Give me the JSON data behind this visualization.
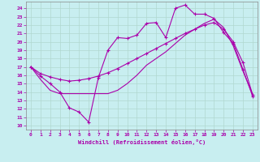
{
  "xlabel": "Windchill (Refroidissement éolien,°C)",
  "x_ticks": [
    0,
    1,
    2,
    3,
    4,
    5,
    6,
    7,
    8,
    9,
    10,
    11,
    12,
    13,
    14,
    15,
    16,
    17,
    18,
    19,
    20,
    21,
    22,
    23
  ],
  "ylim": [
    9.5,
    24.8
  ],
  "xlim": [
    -0.5,
    23.5
  ],
  "yticks": [
    10,
    11,
    12,
    13,
    14,
    15,
    16,
    17,
    18,
    19,
    20,
    21,
    22,
    23,
    24
  ],
  "bg_color": "#c8eef0",
  "line_color": "#aa00aa",
  "grid_color": "#b0d8d0",
  "line1_x": [
    0,
    1,
    2,
    3,
    4,
    5,
    6,
    7,
    8,
    9,
    10,
    11,
    12,
    13,
    14,
    15,
    16,
    17,
    18,
    19,
    20,
    21,
    22,
    23
  ],
  "line1_y": [
    17.0,
    15.9,
    15.0,
    14.0,
    12.1,
    11.6,
    10.4,
    15.7,
    19.0,
    20.5,
    20.4,
    20.8,
    22.2,
    22.3,
    20.5,
    24.0,
    24.4,
    23.3,
    23.3,
    22.8,
    21.1,
    19.8,
    16.7,
    13.5
  ],
  "line2_x": [
    0,
    1,
    2,
    3,
    4,
    5,
    6,
    7,
    8,
    9,
    10,
    11,
    12,
    13,
    14,
    15,
    16,
    17,
    18,
    19,
    20,
    21,
    22,
    23
  ],
  "line2_y": [
    17.0,
    16.2,
    15.8,
    15.5,
    15.3,
    15.4,
    15.6,
    15.9,
    16.3,
    16.8,
    17.4,
    18.0,
    18.6,
    19.2,
    19.8,
    20.4,
    21.0,
    21.5,
    22.0,
    22.3,
    21.5,
    20.0,
    17.5,
    13.7
  ],
  "line3_x": [
    0,
    1,
    2,
    3,
    4,
    5,
    6,
    7,
    8,
    9,
    10,
    11,
    12,
    13,
    14,
    15,
    16,
    17,
    18,
    19,
    20,
    21,
    22,
    23
  ],
  "line3_y": [
    17.0,
    15.5,
    14.2,
    13.8,
    13.8,
    13.8,
    13.8,
    13.8,
    13.8,
    14.2,
    15.0,
    16.0,
    17.2,
    18.0,
    18.8,
    19.8,
    20.8,
    21.5,
    22.2,
    22.7,
    21.7,
    19.5,
    16.5,
    13.7
  ]
}
